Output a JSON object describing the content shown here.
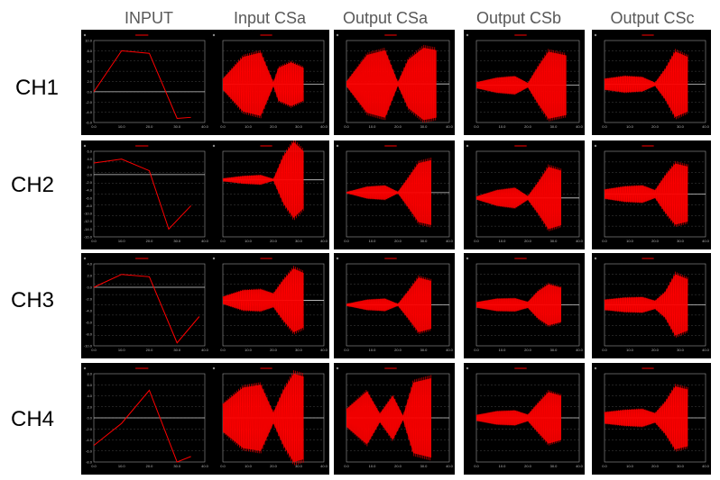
{
  "columns": [
    "INPUT",
    "Input CSa",
    "Output CSa",
    "Output CSb",
    "Output CSc"
  ],
  "rows": [
    "CH1",
    "CH2",
    "CH3",
    "CH4"
  ],
  "colors": {
    "trace": "#ff0000",
    "panel_bg": "#000000",
    "grid": "#9a9a9a",
    "header_text": "#595959"
  },
  "chart_data": [
    {
      "type": "line",
      "row": "CH1",
      "column": "INPUT",
      "x": [
        0,
        10,
        20,
        30,
        35
      ],
      "y": [
        0,
        8,
        7.5,
        -5.2,
        -5
      ],
      "ylim": [
        -6,
        10
      ],
      "xlim": [
        0,
        40
      ],
      "yticks": [
        "10.0",
        "8.0",
        "6.0",
        "4.0",
        "2.0",
        "0.0",
        "-2.0",
        "-4.0",
        "-6.0"
      ],
      "xticks": [
        "0.0",
        "10.0",
        "20.0",
        "30.0",
        "40.0"
      ]
    },
    {
      "type": "area",
      "row": "CH1",
      "column": "Input CSa",
      "envelope": [
        [
          0,
          1
        ],
        [
          8,
          5
        ],
        [
          15,
          5.8
        ],
        [
          20,
          0.4
        ],
        [
          22,
          3
        ],
        [
          27,
          4
        ],
        [
          32,
          3
        ]
      ],
      "ylim": [
        -7,
        8
      ]
    },
    {
      "type": "area",
      "row": "CH1",
      "column": "Output CSa",
      "envelope": [
        [
          0,
          0.5
        ],
        [
          8,
          6
        ],
        [
          15,
          7
        ],
        [
          20,
          0.4
        ],
        [
          24,
          5
        ],
        [
          30,
          7.5
        ],
        [
          35,
          7
        ]
      ],
      "ylim": [
        -8,
        9
      ]
    },
    {
      "type": "area",
      "row": "CH1",
      "column": "Output CSb",
      "envelope": [
        [
          0,
          0.8
        ],
        [
          8,
          2
        ],
        [
          15,
          2.4
        ],
        [
          20,
          0.6
        ],
        [
          24,
          5
        ],
        [
          28,
          9
        ],
        [
          35,
          8
        ]
      ],
      "ylim": [
        -10,
        12
      ]
    },
    {
      "type": "area",
      "row": "CH1",
      "column": "Output CSc",
      "envelope": [
        [
          0,
          2
        ],
        [
          8,
          3
        ],
        [
          15,
          2.6
        ],
        [
          20,
          0.6
        ],
        [
          24,
          5.5
        ],
        [
          28,
          12
        ],
        [
          33,
          10
        ]
      ],
      "ylim": [
        -14,
        16
      ]
    },
    {
      "type": "line",
      "row": "CH2",
      "column": "INPUT",
      "x": [
        0,
        10,
        20,
        27,
        35
      ],
      "y": [
        3,
        4,
        1,
        -14,
        -8
      ],
      "ylim": [
        -16,
        6
      ],
      "xlim": [
        0,
        40
      ],
      "yticks": [
        "6.0",
        "4.0",
        "2.0",
        "0.0",
        "-2.0",
        "-4.0",
        "-6.0",
        "-8.0",
        "-10.0",
        "-12.0",
        "-14.0",
        "-16.0"
      ],
      "xticks": [
        "0.0",
        "10.0",
        "20.0",
        "30.0",
        "40.0"
      ]
    },
    {
      "type": "area",
      "row": "CH2",
      "column": "Input CSa",
      "envelope": [
        [
          0,
          0.3
        ],
        [
          8,
          0.8
        ],
        [
          15,
          1
        ],
        [
          20,
          0.2
        ],
        [
          24,
          5
        ],
        [
          28,
          8
        ],
        [
          32,
          6
        ]
      ],
      "ylim": [
        -12,
        6
      ]
    },
    {
      "type": "area",
      "row": "CH2",
      "column": "Output CSa",
      "envelope": [
        [
          0,
          0.2
        ],
        [
          8,
          2
        ],
        [
          15,
          2.4
        ],
        [
          20,
          0.3
        ],
        [
          24,
          5
        ],
        [
          28,
          10
        ],
        [
          33,
          11
        ]
      ],
      "ylim": [
        -15,
        14
      ]
    },
    {
      "type": "area",
      "row": "CH2",
      "column": "Output CSb",
      "envelope": [
        [
          0,
          0.4
        ],
        [
          8,
          2
        ],
        [
          15,
          2.6
        ],
        [
          20,
          0.5
        ],
        [
          24,
          4
        ],
        [
          28,
          8
        ],
        [
          33,
          7
        ]
      ],
      "ylim": [
        -10,
        12
      ]
    },
    {
      "type": "area",
      "row": "CH2",
      "column": "Output CSc",
      "envelope": [
        [
          0,
          1.5
        ],
        [
          8,
          2.5
        ],
        [
          15,
          2.8
        ],
        [
          20,
          1.3
        ],
        [
          24,
          6
        ],
        [
          28,
          10
        ],
        [
          33,
          9
        ]
      ],
      "ylim": [
        -14,
        14
      ]
    },
    {
      "type": "line",
      "row": "CH3",
      "column": "INPUT",
      "x": [
        0,
        10,
        20,
        30,
        38
      ],
      "y": [
        0,
        2.2,
        1.8,
        -9.5,
        -5
      ],
      "ylim": [
        -10,
        4
      ],
      "xlim": [
        0,
        40
      ],
      "yticks": [
        "4.0",
        "2.0",
        "0.0",
        "-2.0",
        "-4.0",
        "-6.0",
        "-8.0",
        "-10.0"
      ],
      "xticks": [
        "0.0",
        "10.0",
        "20.0",
        "30.0",
        "40.0"
      ]
    },
    {
      "type": "area",
      "row": "CH3",
      "column": "Input CSa",
      "envelope": [
        [
          0,
          0.8
        ],
        [
          8,
          2.2
        ],
        [
          15,
          2.4
        ],
        [
          20,
          1.5
        ],
        [
          24,
          4.5
        ],
        [
          28,
          7
        ],
        [
          32,
          6
        ]
      ],
      "ylim": [
        -10,
        8
      ]
    },
    {
      "type": "area",
      "row": "CH3",
      "column": "Output CSa",
      "envelope": [
        [
          0,
          0.3
        ],
        [
          8,
          1.5
        ],
        [
          15,
          1.8
        ],
        [
          20,
          0.3
        ],
        [
          24,
          4
        ],
        [
          28,
          8
        ],
        [
          33,
          7
        ]
      ],
      "ylim": [
        -12,
        12
      ]
    },
    {
      "type": "area",
      "row": "CH3",
      "column": "Output CSb",
      "envelope": [
        [
          0,
          0.8
        ],
        [
          8,
          1.8
        ],
        [
          15,
          1.9
        ],
        [
          20,
          0.9
        ],
        [
          24,
          4
        ],
        [
          28,
          6
        ],
        [
          33,
          5
        ]
      ],
      "ylim": [
        -12,
        12
      ]
    },
    {
      "type": "area",
      "row": "CH3",
      "column": "Output CSc",
      "envelope": [
        [
          0,
          2
        ],
        [
          8,
          2.8
        ],
        [
          15,
          3
        ],
        [
          20,
          1.6
        ],
        [
          24,
          5
        ],
        [
          28,
          12
        ],
        [
          33,
          10
        ]
      ],
      "ylim": [
        -16,
        16
      ]
    },
    {
      "type": "line",
      "row": "CH4",
      "column": "INPUT",
      "x": [
        0,
        10,
        20,
        30,
        35
      ],
      "y": [
        -5,
        -1,
        5,
        -8,
        -7
      ],
      "ylim": [
        -8,
        8
      ],
      "xlim": [
        0,
        40
      ],
      "yticks": [
        "8.0",
        "6.0",
        "4.0",
        "2.0",
        "0.0",
        "-2.0",
        "-4.0",
        "-6.0",
        "-8.0"
      ],
      "xticks": [
        "0.0",
        "10.0",
        "20.0",
        "30.0",
        "40.0"
      ]
    },
    {
      "type": "area",
      "row": "CH4",
      "column": "Input CSa",
      "envelope": [
        [
          0,
          2.5
        ],
        [
          8,
          5.5
        ],
        [
          15,
          6
        ],
        [
          20,
          1
        ],
        [
          24,
          5
        ],
        [
          28,
          8
        ],
        [
          32,
          7.5
        ]
      ],
      "ylim": [
        -8,
        8
      ]
    },
    {
      "type": "area",
      "row": "CH4",
      "column": "Output CSa",
      "envelope": [
        [
          0,
          2
        ],
        [
          8,
          6
        ],
        [
          13,
          1
        ],
        [
          18,
          5
        ],
        [
          22,
          0.5
        ],
        [
          26,
          8
        ],
        [
          33,
          9
        ]
      ],
      "ylim": [
        -10,
        10
      ]
    },
    {
      "type": "area",
      "row": "CH4",
      "column": "Output CSb",
      "envelope": [
        [
          0,
          0.8
        ],
        [
          8,
          1.8
        ],
        [
          15,
          2
        ],
        [
          20,
          0.9
        ],
        [
          24,
          4
        ],
        [
          28,
          7
        ],
        [
          33,
          6
        ]
      ],
      "ylim": [
        -12,
        12
      ]
    },
    {
      "type": "area",
      "row": "CH4",
      "column": "Output CSc",
      "envelope": [
        [
          0,
          1.8
        ],
        [
          8,
          2.5
        ],
        [
          15,
          2.8
        ],
        [
          20,
          1.5
        ],
        [
          24,
          5
        ],
        [
          28,
          10
        ],
        [
          33,
          9
        ]
      ],
      "ylim": [
        -14,
        14
      ]
    }
  ]
}
